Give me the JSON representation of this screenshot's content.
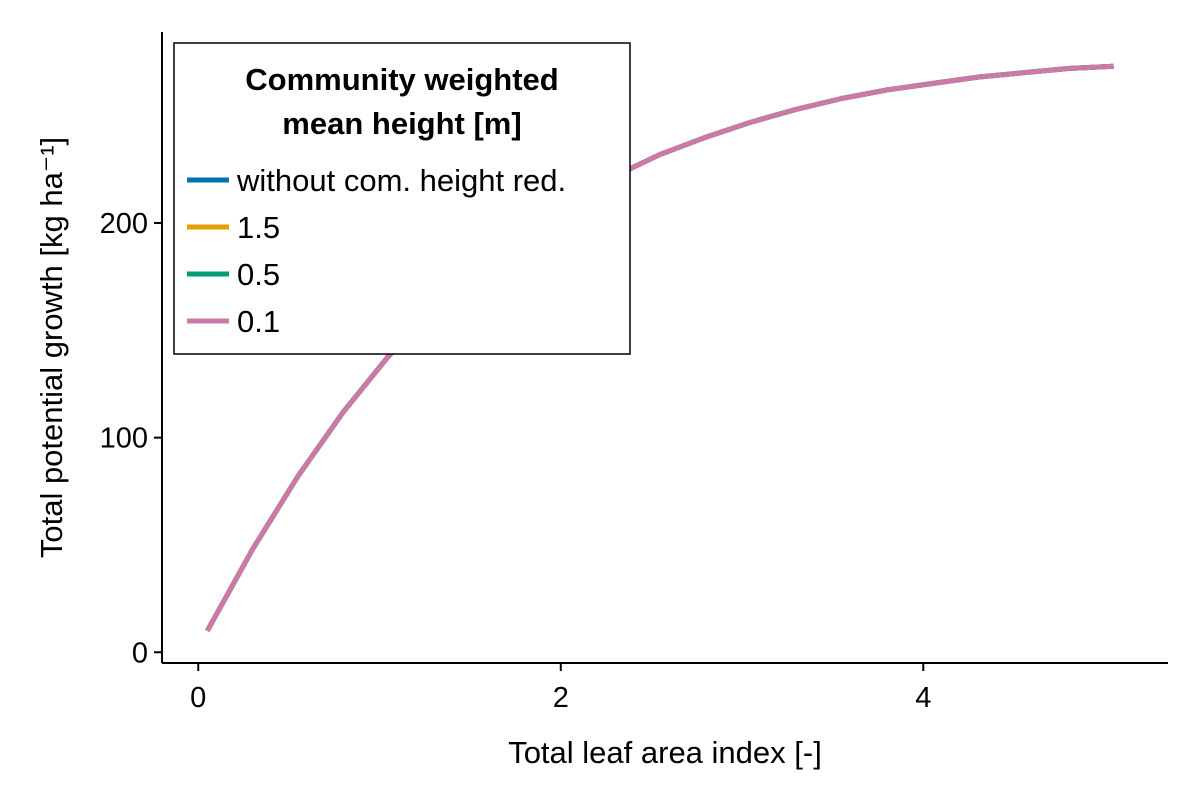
{
  "chart_data": {
    "type": "line",
    "xlabel": "Total leaf area index [-]",
    "ylabel": "Total potential growth [kg ha⁻¹]",
    "xlim": [
      -0.2,
      5.35
    ],
    "ylim": [
      -5,
      289
    ],
    "xticks": [
      0,
      2,
      4
    ],
    "yticks": [
      0,
      100,
      200
    ],
    "grid": false,
    "legend": {
      "position": "top-left",
      "title_lines": [
        "Community weighted",
        "mean height [m]"
      ]
    },
    "x": [
      0.05,
      0.3,
      0.55,
      0.8,
      1.05,
      1.3,
      1.55,
      1.8,
      2.05,
      2.3,
      2.55,
      2.8,
      3.05,
      3.3,
      3.55,
      3.8,
      4.05,
      4.3,
      4.55,
      4.8,
      5.05
    ],
    "series": [
      {
        "name": "without com. height red.",
        "color": "#0072b2",
        "values": [
          10,
          48,
          82,
          112,
          138,
          160,
          179,
          196,
          210,
          222,
          232,
          240,
          247,
          253,
          258,
          262,
          265,
          268,
          270,
          272,
          273
        ]
      },
      {
        "name": "1.5",
        "color": "#e69f00",
        "values": [
          10,
          48,
          82,
          112,
          138,
          160,
          179,
          196,
          210,
          222,
          232,
          240,
          247,
          253,
          258,
          262,
          265,
          268,
          270,
          272,
          273
        ]
      },
      {
        "name": "0.5",
        "color": "#009e73",
        "values": [
          10,
          48,
          82,
          112,
          138,
          160,
          179,
          196,
          210,
          222,
          232,
          240,
          247,
          253,
          258,
          262,
          265,
          268,
          270,
          272,
          273
        ]
      },
      {
        "name": "0.1",
        "color": "#cc79a7",
        "values": [
          10,
          48,
          82,
          112,
          138,
          160,
          179,
          196,
          210,
          222,
          232,
          240,
          247,
          253,
          258,
          262,
          265,
          268,
          270,
          272,
          273
        ]
      }
    ]
  }
}
